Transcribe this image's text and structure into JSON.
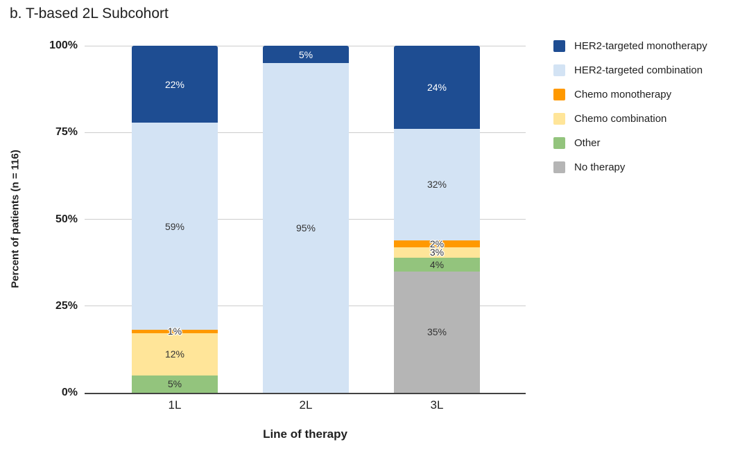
{
  "title": "b. T-based 2L Subcohort",
  "chart_data": {
    "type": "bar",
    "stacked": true,
    "title": "b. T-based 2L Subcohort",
    "categories": [
      "1L",
      "2L",
      "3L"
    ],
    "series": [
      {
        "name": "HER2-targeted monotherapy",
        "color": "#1e4d92",
        "label_color": "#ffffff",
        "values": [
          22,
          5,
          24
        ]
      },
      {
        "name": "HER2-targeted combination",
        "color": "#d3e3f4",
        "label_color": "#333333",
        "values": [
          59,
          95,
          32
        ]
      },
      {
        "name": "Chemo monotherapy",
        "color": "#ff9900",
        "label_color": "#333333",
        "values": [
          1,
          0,
          2
        ]
      },
      {
        "name": "Chemo combination",
        "color": "#ffe599",
        "label_color": "#333333",
        "values": [
          12,
          0,
          3
        ]
      },
      {
        "name": "Other",
        "color": "#93c47d",
        "label_color": "#333333",
        "values": [
          5,
          0,
          4
        ]
      },
      {
        "name": "No therapy",
        "color": "#b5b5b5",
        "label_color": "#333333",
        "values": [
          0,
          0,
          35
        ]
      }
    ],
    "xlabel": "Line of therapy",
    "ylabel": "Percent of patients (n = 116)",
    "yticks": [
      {
        "value": 100,
        "label": "100%"
      },
      {
        "value": 75,
        "label": "75%"
      },
      {
        "value": 50,
        "label": "50%"
      },
      {
        "value": 25,
        "label": "25%"
      },
      {
        "value": 0,
        "label": "0%"
      }
    ],
    "ylim": [
      0,
      100
    ],
    "grid": true,
    "legend_position": "right",
    "label_suffix": "%",
    "colors": {
      "gridline": "#cccccc",
      "axis_line": "#424242",
      "text": "#1f1f1f"
    }
  }
}
